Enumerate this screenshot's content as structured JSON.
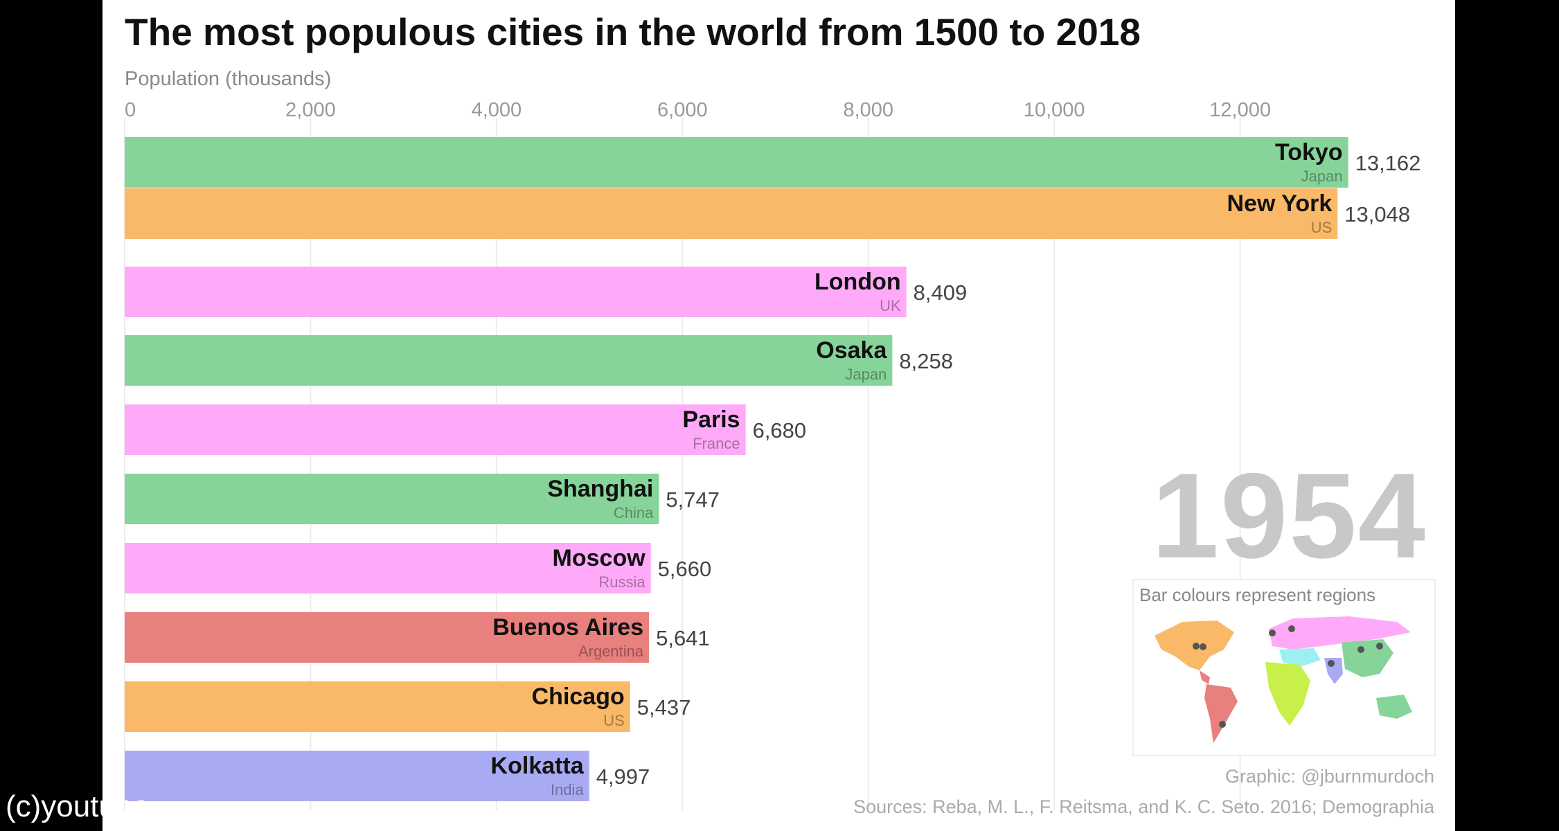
{
  "chart_data": {
    "type": "bar",
    "title": "The most populous cities in the world from 1500 to 2018",
    "xlabel": "Population (thousands)",
    "ylabel": "",
    "xlim": [
      0,
      13500
    ],
    "ticks": [
      0,
      2000,
      4000,
      6000,
      8000,
      10000,
      12000
    ],
    "tick_labels": [
      "0",
      "2,000",
      "4,000",
      "6,000",
      "8,000",
      "10,000",
      "12,000"
    ],
    "orientation": "horizontal",
    "grid": true,
    "year": "1954",
    "bars": [
      {
        "city": "Tokyo",
        "country": "Japan",
        "value": 13162,
        "value_label": "13,162",
        "region": "East Asia"
      },
      {
        "city": "New York",
        "country": "US",
        "value": 13048,
        "value_label": "13,048",
        "region": "North America"
      },
      {
        "city": "London",
        "country": "UK",
        "value": 8409,
        "value_label": "8,409",
        "region": "Europe"
      },
      {
        "city": "Osaka",
        "country": "Japan",
        "value": 8258,
        "value_label": "8,258",
        "region": "East Asia"
      },
      {
        "city": "Paris",
        "country": "France",
        "value": 6680,
        "value_label": "6,680",
        "region": "Europe"
      },
      {
        "city": "Shanghai",
        "country": "China",
        "value": 5747,
        "value_label": "5,747",
        "region": "East Asia"
      },
      {
        "city": "Moscow",
        "country": "Russia",
        "value": 5660,
        "value_label": "5,660",
        "region": "Europe"
      },
      {
        "city": "Buenos Aires",
        "country": "Argentina",
        "value": 5641,
        "value_label": "5,641",
        "region": "Latin America"
      },
      {
        "city": "Chicago",
        "country": "US",
        "value": 5437,
        "value_label": "5,437",
        "region": "North America"
      },
      {
        "city": "Kolkatta",
        "country": "India",
        "value": 4997,
        "value_label": "4,997",
        "region": "South Asia"
      }
    ],
    "region_colors": {
      "East Asia": "#86d49a",
      "North America": "#f9b968",
      "Europe": "#ffaaf8",
      "Latin America": "#e8807d",
      "South Asia": "#a9aaf4",
      "Africa": "#c8f04a",
      "Middle East": "#9cf0f0",
      "Oceania": "#86d49a"
    }
  },
  "legend": {
    "title": "Bar colours represent regions"
  },
  "credit": "Graphic: @jburnmurdoch",
  "sources": "Sources: Reba, M. L., F. Reitsma, and K. C. Seto. 2016; Demographia",
  "watermark": "(c)youtube"
}
